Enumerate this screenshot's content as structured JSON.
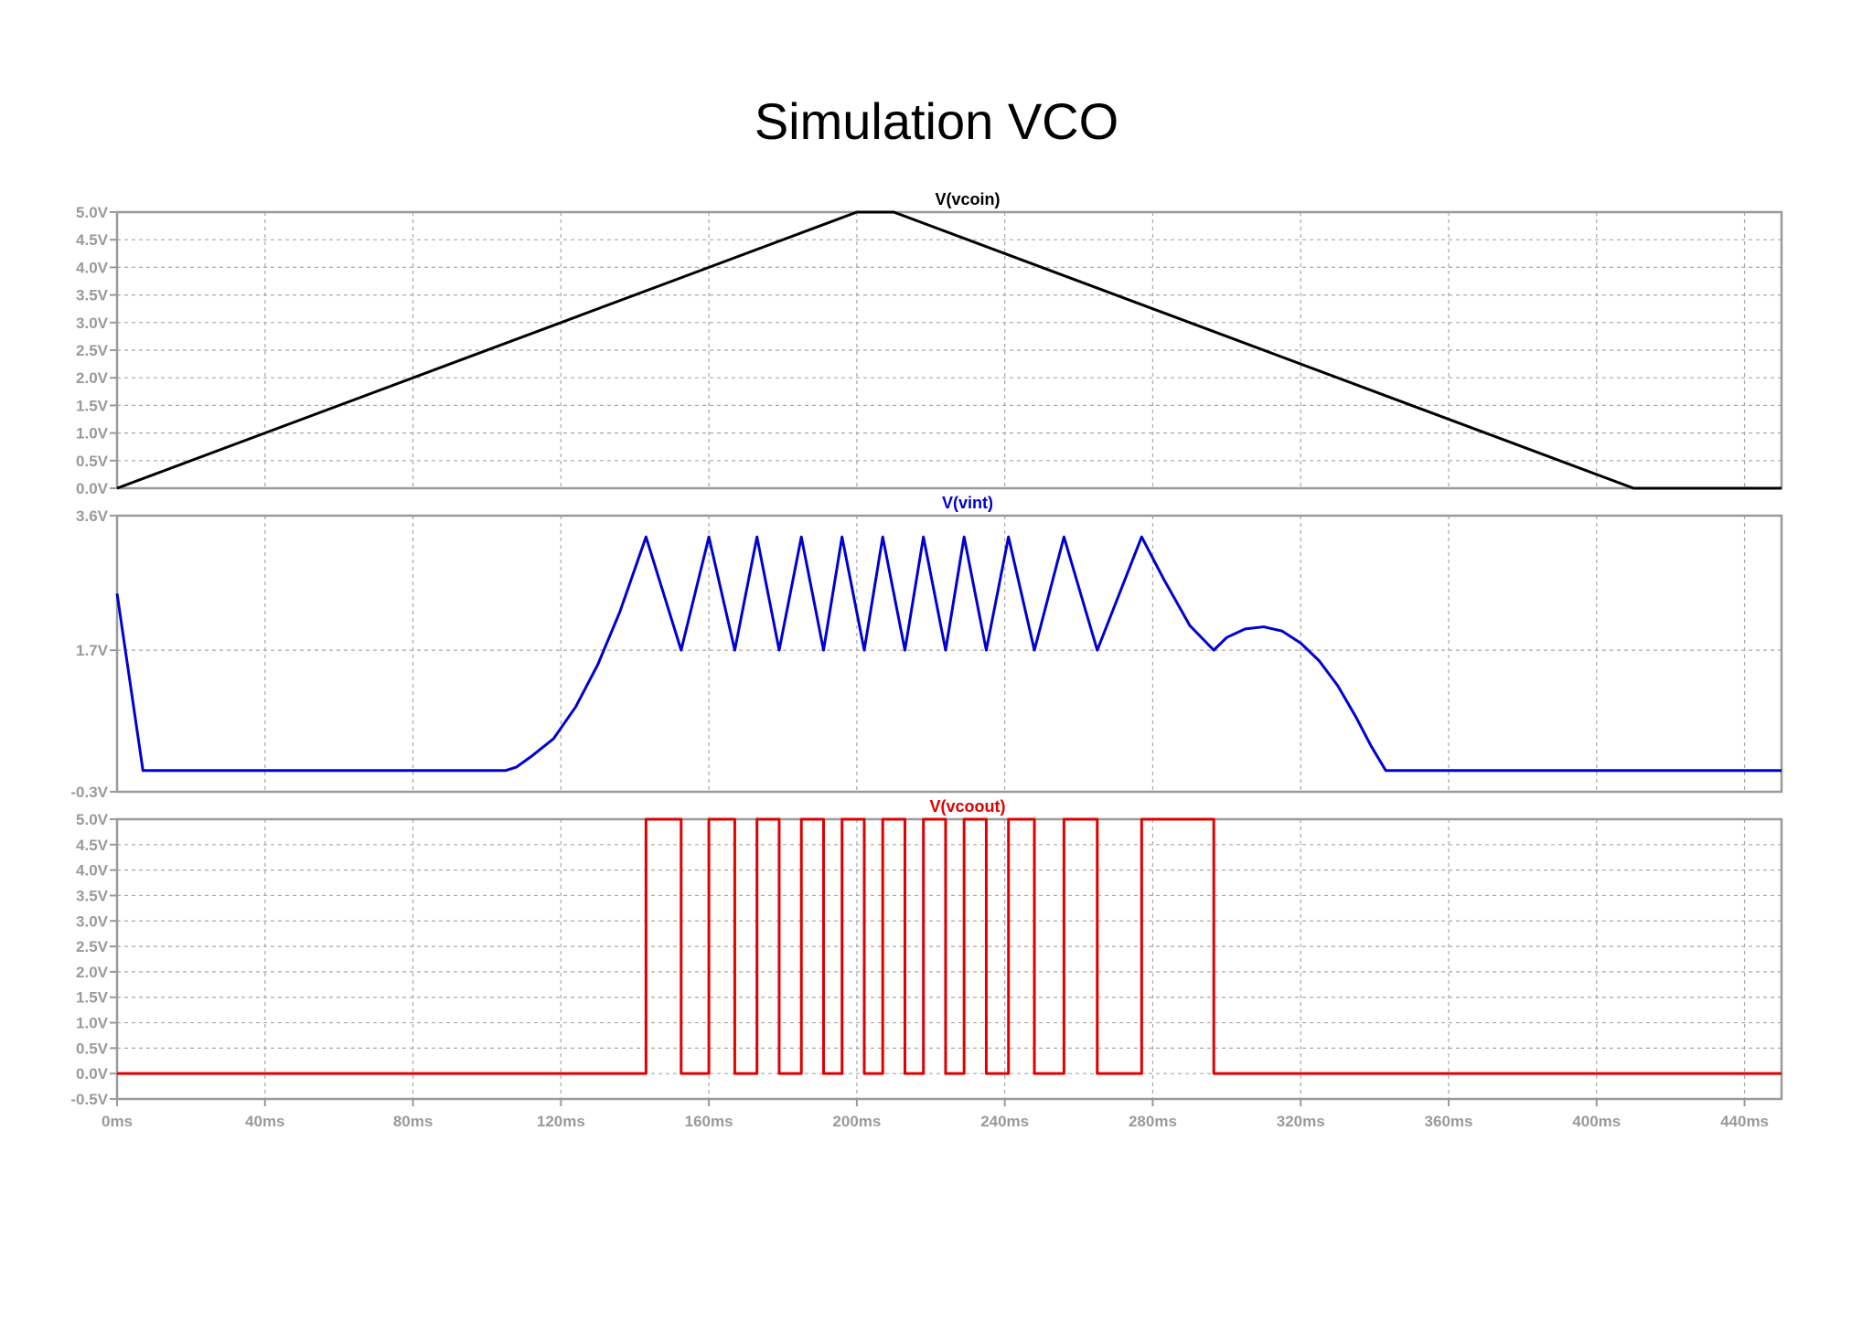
{
  "page": {
    "title": "Simulation VCO"
  },
  "chart_data": [
    {
      "type": "line",
      "title": "V(vcoin)",
      "color": "#000000",
      "xlim": [
        0,
        450
      ],
      "ylim": [
        0,
        5
      ],
      "xticks": [
        0,
        40,
        80,
        120,
        160,
        200,
        240,
        280,
        320,
        360,
        400,
        440
      ],
      "yticks": [
        0,
        0.5,
        1.0,
        1.5,
        2.0,
        2.5,
        3.0,
        3.5,
        4.0,
        4.5,
        5.0
      ],
      "ytick_labels": [
        "0.0V",
        "0.5V",
        "1.0V",
        "1.5V",
        "2.0V",
        "2.5V",
        "3.0V",
        "3.5V",
        "4.0V",
        "4.5V",
        "5.0V"
      ],
      "grid": true,
      "x": [
        0,
        200,
        210,
        410,
        450
      ],
      "y": [
        0,
        5,
        5,
        0,
        0
      ]
    },
    {
      "type": "line",
      "title": "V(vint)",
      "color": "#0000d0",
      "xlim": [
        0,
        450
      ],
      "ylim": [
        -0.3,
        3.6
      ],
      "xticks": [
        0,
        40,
        80,
        120,
        160,
        200,
        240,
        280,
        320,
        360,
        400,
        440
      ],
      "yticks": [
        -0.3,
        1.7,
        3.6
      ],
      "ytick_labels": [
        "-0.3V",
        "1.7V",
        "3.6V"
      ],
      "grid": true,
      "x": [
        0,
        7,
        105,
        108,
        112,
        118,
        124,
        130,
        136,
        143,
        152.5,
        160,
        167,
        173,
        179,
        185,
        191,
        196,
        202,
        207,
        213,
        218,
        224,
        229,
        235,
        241,
        248,
        256,
        265,
        277,
        283,
        290,
        296.5,
        300,
        305,
        310,
        315,
        320,
        325,
        330,
        335,
        339,
        343,
        450
      ],
      "y": [
        2.5,
        0,
        0,
        0.05,
        0.2,
        0.45,
        0.9,
        1.5,
        2.25,
        3.3,
        1.7,
        3.3,
        1.7,
        3.3,
        1.7,
        3.3,
        1.7,
        3.3,
        1.7,
        3.3,
        1.7,
        3.3,
        1.7,
        3.3,
        1.7,
        3.3,
        1.7,
        3.3,
        1.7,
        3.3,
        2.7,
        2.05,
        1.7,
        1.88,
        2.0,
        2.03,
        1.97,
        1.8,
        1.55,
        1.2,
        0.75,
        0.35,
        0,
        0
      ]
    },
    {
      "type": "line",
      "title": "V(vcoout)",
      "color": "#e00000",
      "xlim": [
        0,
        450
      ],
      "ylim": [
        -0.5,
        5
      ],
      "xticks": [
        0,
        40,
        80,
        120,
        160,
        200,
        240,
        280,
        320,
        360,
        400,
        440
      ],
      "yticks": [
        -0.5,
        0,
        0.5,
        1.0,
        1.5,
        2.0,
        2.5,
        3.0,
        3.5,
        4.0,
        4.5,
        5.0
      ],
      "ytick_labels": [
        "-0.5V",
        "0.0V",
        "0.5V",
        "1.0V",
        "1.5V",
        "2.0V",
        "2.5V",
        "3.0V",
        "3.5V",
        "4.0V",
        "4.5V",
        "5.0V"
      ],
      "xtick_labels": [
        "0ms",
        "40ms",
        "80ms",
        "120ms",
        "160ms",
        "200ms",
        "240ms",
        "280ms",
        "320ms",
        "360ms",
        "400ms",
        "440ms"
      ],
      "grid": true,
      "x": [
        0,
        143,
        143,
        152.5,
        152.5,
        160,
        160,
        167,
        167,
        173,
        173,
        179,
        179,
        185,
        185,
        191,
        191,
        196,
        196,
        202,
        202,
        207,
        207,
        213,
        213,
        218,
        218,
        224,
        224,
        229,
        229,
        235,
        235,
        241,
        241,
        248,
        248,
        256,
        256,
        265,
        265,
        277,
        277,
        296.5,
        296.5,
        450
      ],
      "y": [
        0,
        0,
        5,
        5,
        0,
        0,
        5,
        5,
        0,
        0,
        5,
        5,
        0,
        0,
        5,
        5,
        0,
        0,
        5,
        5,
        0,
        0,
        5,
        5,
        0,
        0,
        5,
        5,
        0,
        0,
        5,
        5,
        0,
        0,
        5,
        5,
        0,
        0,
        5,
        5,
        0,
        0,
        5,
        5,
        0,
        0
      ]
    }
  ]
}
